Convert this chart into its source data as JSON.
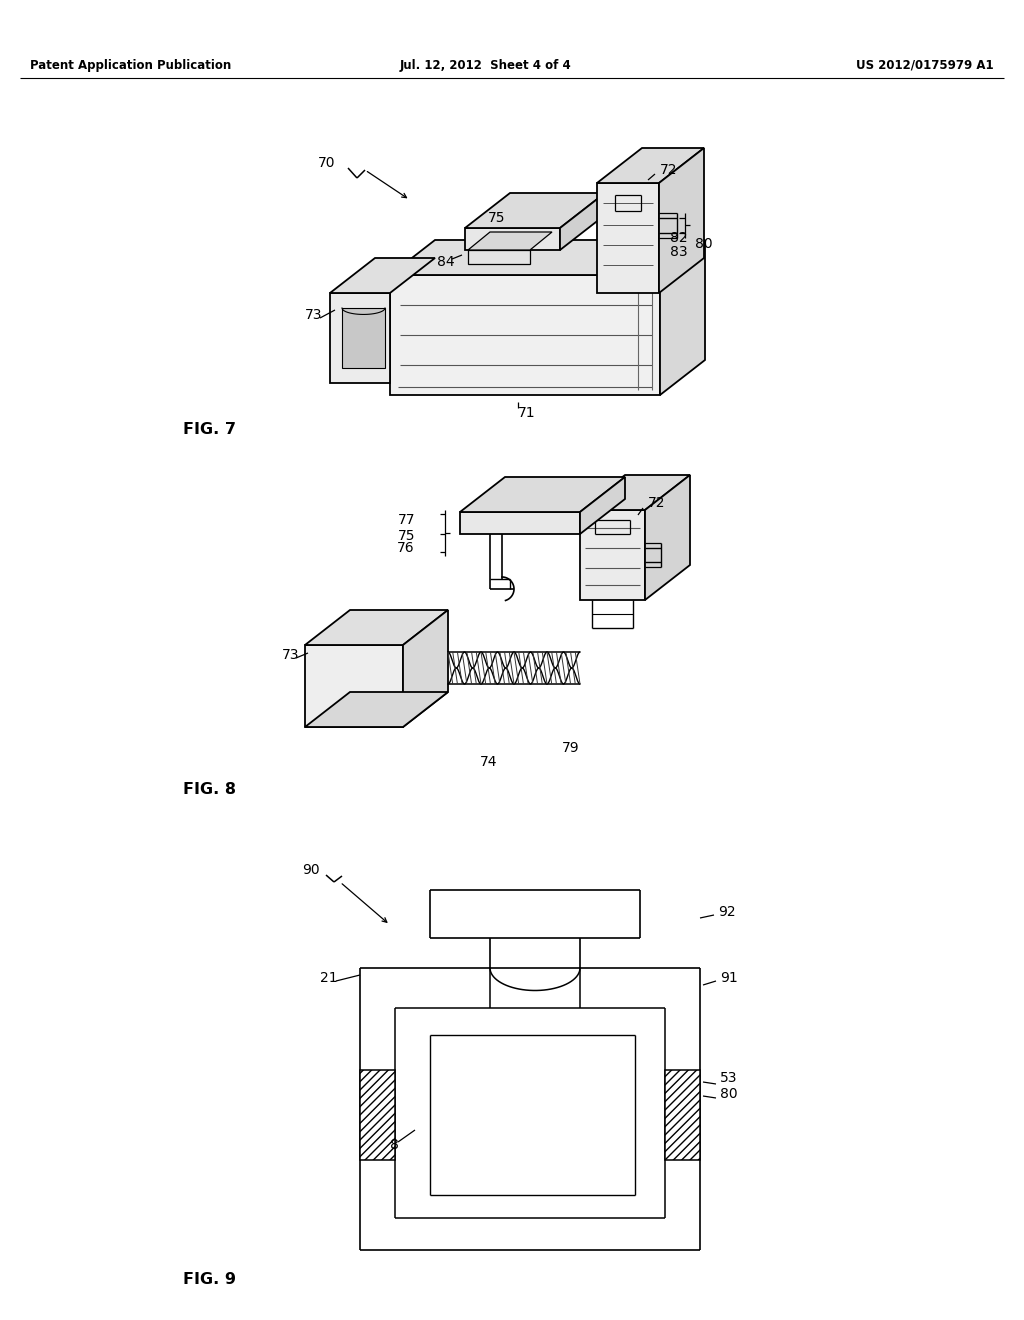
{
  "bg_color": "#ffffff",
  "header_left": "Patent Application Publication",
  "header_center": "Jul. 12, 2012  Sheet 4 of 4",
  "header_right": "US 2012/0175979 A1",
  "fig7_label": "FIG. 7",
  "fig8_label": "FIG. 8",
  "fig9_label": "FIG. 9",
  "line_color": "#000000",
  "lw": 1.3
}
